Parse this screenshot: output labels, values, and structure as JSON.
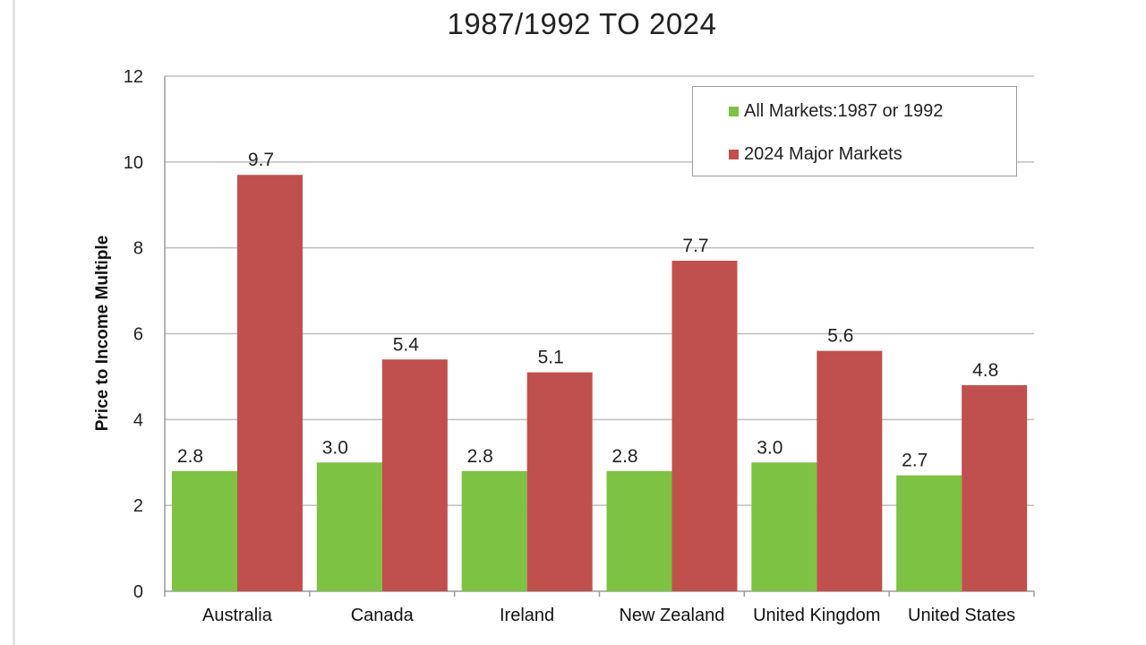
{
  "chart_data": {
    "type": "bar",
    "title": "1987/1992 TO 2024",
    "ylabel": "Price to Income Multiple",
    "xlabel": "",
    "ylim": [
      0,
      12
    ],
    "yticks": [
      0,
      2,
      4,
      6,
      8,
      10,
      12
    ],
    "grid": true,
    "legend_position": "top-right",
    "categories": [
      "Australia",
      "Canada",
      "Ireland",
      "New Zealand",
      "United Kingdom",
      "United States"
    ],
    "series": [
      {
        "name": "All Markets:1987 or 1992",
        "color": "#7dc242",
        "values": [
          2.8,
          3.0,
          2.8,
          2.8,
          3.0,
          2.7
        ],
        "labels": [
          "2.8",
          "3.0",
          "2.8",
          "2.8",
          "3.0",
          "2.7"
        ]
      },
      {
        "name": "2024 Major Markets",
        "color": "#c0504d",
        "values": [
          9.7,
          5.4,
          5.1,
          7.7,
          5.6,
          4.8
        ],
        "labels": [
          "9.7",
          "5.4",
          "5.1",
          "7.7",
          "5.6",
          "4.8"
        ]
      }
    ]
  }
}
